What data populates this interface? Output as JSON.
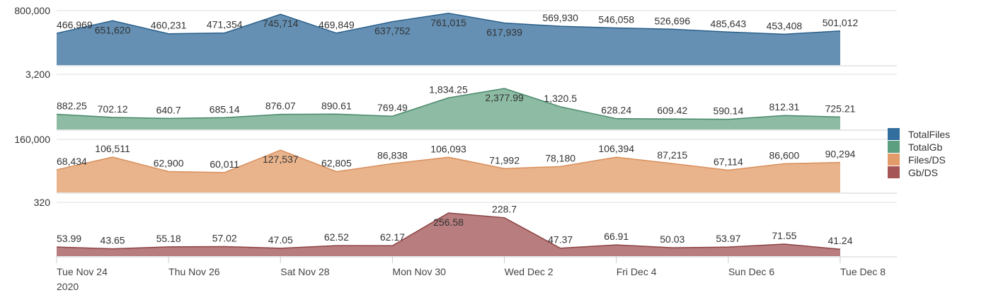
{
  "chart_data": {
    "type": "area",
    "layout": "stacked-panels",
    "x": [
      "Tue Nov 24",
      "Wed Nov 25",
      "Thu Nov 26",
      "Fri Nov 27",
      "Sat Nov 28",
      "Sun Nov 29",
      "Mon Nov 30",
      "Tue Dec 1",
      "Wed Dec 2",
      "Thu Dec 3",
      "Fri Dec 4",
      "Sat Dec 5",
      "Sun Dec 6",
      "Mon Dec 7",
      "Tue Dec 8"
    ],
    "x_ticks": [
      {
        "index": 0,
        "label": "Tue Nov 24",
        "sublabel": "2020"
      },
      {
        "index": 2,
        "label": "Thu Nov 26"
      },
      {
        "index": 4,
        "label": "Sat Nov 28"
      },
      {
        "index": 6,
        "label": "Mon Nov 30"
      },
      {
        "index": 8,
        "label": "Wed Dec 2"
      },
      {
        "index": 10,
        "label": "Fri Dec 4"
      },
      {
        "index": 12,
        "label": "Sun Dec 6"
      },
      {
        "index": 14,
        "label": "Tue Dec 8"
      }
    ],
    "series": [
      {
        "name": "TotalFiles",
        "color": "#326f9e",
        "fill": "#6590b4",
        "line": "#2a5f8a",
        "ylim": [
          0,
          800000
        ],
        "ymax_label": "800,000",
        "values": [
          466969,
          651620,
          460231,
          471354,
          745714,
          469849,
          637752,
          761015,
          617939,
          569930,
          546058,
          526696,
          485643,
          453408,
          501012
        ],
        "labels": [
          "466,969",
          "651,620",
          "460,231",
          "471,354",
          "745,714",
          "469,849",
          "637,752",
          "761,015",
          "617,939",
          "569,930",
          "546,058",
          "526,696",
          "485,643",
          "453,408",
          "501,012"
        ]
      },
      {
        "name": "TotalGb",
        "color": "#5b9e80",
        "fill": "#8dbba3",
        "line": "#4a8a6c",
        "ylim": [
          0,
          3200
        ],
        "ymax_label": "3,200",
        "values": [
          882.25,
          702.12,
          640.7,
          685.14,
          876.07,
          890.61,
          769.49,
          1834.25,
          2377.99,
          1320.5,
          628.24,
          609.42,
          590.14,
          812.31,
          725.21
        ],
        "labels": [
          "882.25",
          "702.12",
          "640.7",
          "685.14",
          "876.07",
          "890.61",
          "769.49",
          "1,834.25",
          "2,377.99",
          "1,320.5",
          "628.24",
          "609.42",
          "590.14",
          "812.31",
          "725.21"
        ]
      },
      {
        "name": "Files/DS",
        "color": "#e39b6a",
        "fill": "#e9b48c",
        "line": "#d98f5c",
        "ylim": [
          0,
          160000
        ],
        "ymax_label": "160,000",
        "values": [
          68434,
          106511,
          62900,
          60011,
          127537,
          62805,
          86838,
          106093,
          71992,
          78180,
          106394,
          87215,
          67114,
          86600,
          90294
        ],
        "labels": [
          "68,434",
          "106,511",
          "62,900",
          "60,011",
          "127,537",
          "62,805",
          "86,838",
          "106,093",
          "71,992",
          "78,180",
          "106,394",
          "87,215",
          "67,114",
          "86,600",
          "90,294"
        ]
      },
      {
        "name": "Gb/DS",
        "color": "#a65556",
        "fill": "#b87d7e",
        "line": "#8e4445",
        "ylim": [
          0,
          320
        ],
        "ymax_label": "320",
        "values": [
          53.99,
          43.65,
          55.18,
          57.02,
          47.05,
          62.52,
          62.17,
          256.58,
          228.7,
          47.37,
          66.91,
          50.03,
          53.97,
          71.55,
          41.24
        ],
        "labels": [
          "53.99",
          "43.65",
          "55.18",
          "57.02",
          "47.05",
          "62.52",
          "62.17",
          "256.58",
          "228.7",
          "47.37",
          "66.91",
          "50.03",
          "53.97",
          "71.55",
          "41.24"
        ]
      }
    ],
    "legend": {
      "placement": "right",
      "entries": [
        "TotalFiles",
        "TotalGb",
        "Files/DS",
        "Gb/DS"
      ]
    },
    "grid": true
  }
}
